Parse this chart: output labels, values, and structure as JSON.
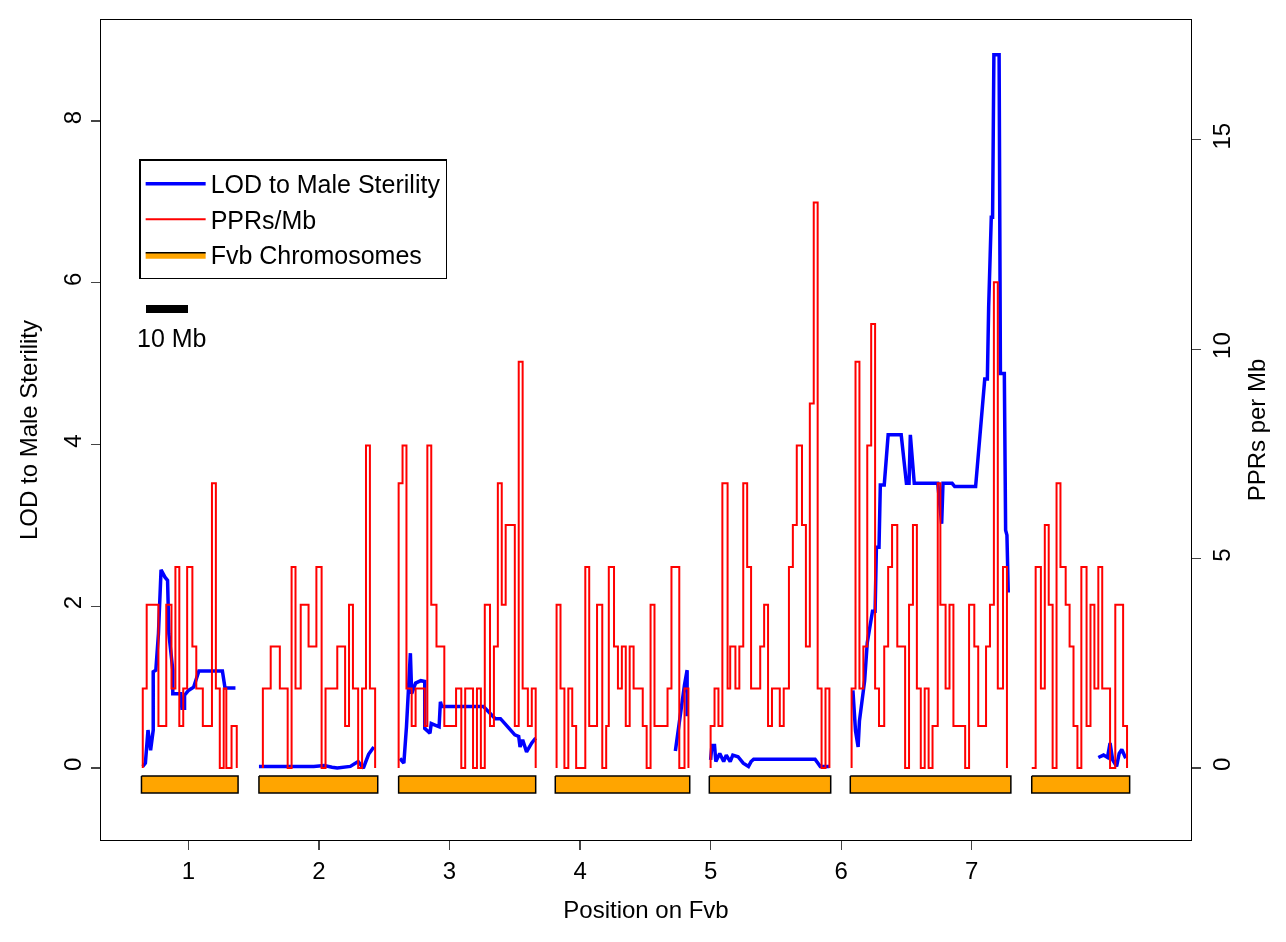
{
  "chart_data": {
    "type": "line",
    "xlabel": "Position on Fvb",
    "ylabel": "LOD to Male Sterility",
    "y2label": "PPRs per Mb",
    "xlim": [
      0.33,
      8.68
    ],
    "xticks": [
      1,
      2,
      3,
      4,
      5,
      6,
      7
    ],
    "ylim": [
      -0.89,
      9.25
    ],
    "yticks": [
      0,
      2,
      4,
      6,
      8
    ],
    "y2lim": [
      -1.72,
      17.86
    ],
    "y2ticks": [
      0,
      5,
      10,
      15
    ],
    "grid": false,
    "legend": "top left",
    "marker": "none",
    "line_style": "solid",
    "annotations": [
      "10 Mb"
    ],
    "series": [
      {
        "name": "LOD to Male Sterility",
        "type": "line",
        "color": "#0000ff",
        "x": [
          0.65,
          0.67,
          0.69,
          0.71,
          0.73,
          0.73,
          0.75,
          0.77,
          0.79,
          0.82,
          0.84,
          0.85,
          0.88,
          0.88,
          0.94,
          0.95,
          0.97,
          0.97,
          1.0,
          1.04,
          1.08,
          1.26,
          1.28,
          1.36,
          null,
          1.54,
          1.96,
          2.04,
          2.1,
          2.14,
          2.24,
          2.3,
          2.34,
          2.38,
          2.42,
          null,
          2.62,
          2.65,
          2.67,
          2.7,
          2.71,
          2.74,
          2.78,
          2.81,
          2.81,
          2.85,
          2.86,
          2.92,
          2.93,
          2.94,
          3.26,
          3.35,
          3.39,
          3.5,
          3.53,
          3.54,
          3.56,
          3.59,
          3.63,
          3.66,
          null,
          4.73,
          4.8,
          4.82,
          4.82,
          null,
          5.0,
          5.01,
          5.03,
          5.04,
          5.07,
          5.1,
          5.12,
          5.15,
          5.17,
          5.21,
          5.25,
          5.29,
          5.31,
          5.33,
          5.8,
          5.84,
          5.91,
          null,
          6.09,
          6.11,
          6.13,
          6.14,
          6.18,
          6.2,
          6.24,
          6.26,
          6.27,
          6.29,
          6.3,
          6.33,
          6.36,
          6.46,
          6.5,
          6.52,
          6.53,
          6.56,
          6.74,
          6.77,
          6.78,
          6.85,
          6.87,
          7.03,
          7.1,
          7.12,
          7.13,
          7.15,
          7.16,
          7.17,
          7.21,
          7.22,
          7.25,
          7.26,
          7.27,
          7.28,
          null,
          7.97,
          8.01,
          8.04,
          8.06,
          8.08,
          8.11,
          8.13,
          8.15,
          8.18
        ],
        "values": [
          0.02,
          0.06,
          0.47,
          0.22,
          0.47,
          1.19,
          1.21,
          1.66,
          2.45,
          2.36,
          2.32,
          1.66,
          1.21,
          0.92,
          0.92,
          0.74,
          0.74,
          0.9,
          0.96,
          1.0,
          1.2,
          1.2,
          0.99,
          0.99,
          null,
          0.02,
          0.02,
          0.03,
          0.01,
          0,
          0.02,
          0.08,
          0,
          0.17,
          0.26,
          null,
          0.12,
          0.06,
          0.51,
          1.42,
          0.92,
          1.05,
          1.08,
          1.07,
          0.49,
          0.43,
          0.55,
          0.51,
          0.82,
          0.76,
          0.76,
          0.61,
          0.61,
          0.41,
          0.39,
          0.26,
          0.35,
          0.2,
          0.31,
          0.37,
          null,
          0.21,
          1.03,
          1.21,
          0.64,
          null,
          0.1,
          0.28,
          0.28,
          0.08,
          0.18,
          0.08,
          0.16,
          0.08,
          0.16,
          0.14,
          0.06,
          0.02,
          0.08,
          0.11,
          0.11,
          0.02,
          0.02,
          null,
          0.96,
          0.46,
          0.26,
          0.58,
          1.08,
          1.55,
          1.94,
          1.94,
          2.73,
          2.73,
          3.5,
          3.5,
          4.12,
          4.12,
          3.52,
          3.52,
          4.12,
          3.52,
          3.52,
          3.02,
          3.52,
          3.52,
          3.48,
          3.48,
          4.81,
          4.81,
          5.7,
          6.81,
          6.81,
          8.82,
          8.82,
          4.88,
          4.88,
          2.94,
          2.88,
          2.17,
          null,
          0.13,
          0.16,
          0.13,
          0.31,
          0.1,
          0.02,
          0.18,
          0.23,
          0.12
        ]
      },
      {
        "name": "PPRs/Mb",
        "type": "step",
        "axis": "y2",
        "color": "#ff0000",
        "x": [
          0.65,
          0.65,
          0.68,
          0.77,
          0.83,
          0.87,
          0.9,
          0.93,
          0.96,
          0.99,
          1.03,
          1.06,
          1.11,
          1.18,
          1.21,
          1.24,
          1.27,
          1.29,
          1.33,
          1.37,
          null,
          1.57,
          1.57,
          1.63,
          1.7,
          1.76,
          1.79,
          1.82,
          1.86,
          1.92,
          1.98,
          2.02,
          2.05,
          2.14,
          2.2,
          2.23,
          2.26,
          2.3,
          2.33,
          2.36,
          2.39,
          2.43,
          null,
          2.61,
          2.61,
          2.64,
          2.67,
          2.71,
          2.74,
          2.81,
          2.83,
          2.86,
          2.9,
          2.96,
          3.05,
          3.09,
          3.12,
          3.18,
          3.21,
          3.24,
          3.27,
          3.31,
          3.34,
          3.37,
          3.4,
          3.43,
          3.5,
          3.53,
          3.56,
          3.6,
          3.63,
          3.66,
          null,
          3.82,
          3.82,
          3.85,
          3.88,
          3.91,
          3.94,
          3.97,
          4.04,
          4.07,
          4.13,
          4.17,
          4.2,
          4.22,
          4.26,
          4.29,
          4.32,
          4.35,
          4.38,
          4.41,
          4.48,
          4.51,
          4.54,
          4.57,
          4.67,
          4.7,
          4.76,
          4.8,
          4.83,
          null,
          5.0,
          5.0,
          5.03,
          5.06,
          5.09,
          5.13,
          5.15,
          5.19,
          5.22,
          5.25,
          5.28,
          5.31,
          5.38,
          5.41,
          5.44,
          5.47,
          5.53,
          5.56,
          5.6,
          5.63,
          5.66,
          5.7,
          5.73,
          5.76,
          5.79,
          5.82,
          5.85,
          5.88,
          5.91,
          null,
          6.08,
          6.08,
          6.11,
          6.14,
          6.17,
          6.2,
          6.23,
          6.26,
          6.29,
          6.33,
          6.36,
          6.39,
          6.43,
          6.49,
          6.52,
          6.55,
          6.58,
          6.61,
          6.64,
          6.67,
          6.7,
          6.74,
          6.76,
          6.8,
          6.83,
          6.86,
          6.95,
          6.98,
          7.02,
          7.05,
          7.11,
          7.14,
          7.17,
          7.2,
          7.24,
          7.27,
          null,
          7.46,
          7.49,
          7.53,
          7.56,
          7.59,
          7.62,
          7.65,
          7.68,
          7.72,
          7.75,
          7.78,
          7.81,
          7.84,
          7.88,
          7.91,
          7.94,
          7.97,
          8.0,
          8.06,
          8.1,
          8.16,
          8.19
        ],
        "values": [
          0,
          1.9,
          3.9,
          1.0,
          3.9,
          1.9,
          4.8,
          1.0,
          1.9,
          4.8,
          2.9,
          1.9,
          1.0,
          6.8,
          1.9,
          0,
          1.9,
          0,
          1.0,
          0,
          null,
          0,
          1.9,
          2.9,
          1.9,
          0,
          4.8,
          1.9,
          3.9,
          2.9,
          4.8,
          0,
          1.9,
          2.9,
          1.0,
          3.9,
          1.9,
          0,
          1.9,
          7.7,
          1.9,
          0,
          null,
          0,
          6.8,
          7.7,
          1.9,
          1.0,
          1.9,
          1.0,
          7.7,
          3.9,
          2.9,
          1.0,
          1.9,
          0,
          1.9,
          0,
          1.9,
          0,
          3.9,
          1.0,
          2.9,
          6.8,
          3.9,
          5.8,
          1.0,
          9.7,
          1.9,
          1.0,
          1.9,
          0,
          null,
          0,
          3.9,
          1.9,
          0,
          1.9,
          1.0,
          0,
          4.8,
          1.0,
          3.9,
          0,
          1.0,
          4.8,
          2.9,
          1.9,
          2.9,
          1.0,
          2.9,
          1.9,
          1.0,
          0,
          3.9,
          1.0,
          1.9,
          4.8,
          0,
          1.9,
          0,
          null,
          0,
          1.0,
          1.9,
          1.0,
          6.8,
          1.9,
          2.9,
          1.9,
          2.9,
          6.8,
          4.8,
          1.9,
          2.9,
          3.9,
          1.0,
          1.9,
          1.0,
          1.9,
          4.8,
          5.8,
          7.7,
          5.8,
          2.9,
          8.7,
          13.5,
          1.9,
          0,
          1.9,
          0,
          null,
          0,
          1.9,
          9.7,
          1.9,
          2.9,
          7.7,
          10.6,
          1.9,
          1.0,
          2.9,
          4.8,
          5.8,
          2.9,
          0,
          3.9,
          5.8,
          1.9,
          0,
          1.9,
          0,
          1.0,
          6.8,
          3.9,
          1.9,
          3.9,
          1.0,
          0,
          3.9,
          2.9,
          1.0,
          2.9,
          3.9,
          11.6,
          1.9,
          4.8,
          0,
          null,
          0,
          4.8,
          1.9,
          5.8,
          3.9,
          0,
          6.8,
          4.8,
          3.9,
          2.9,
          1.0,
          0,
          4.8,
          1.0,
          3.9,
          1.9,
          4.8,
          1.9,
          0,
          3.9,
          1.0,
          0
        ]
      },
      {
        "name": "Fvb Chromosomes",
        "type": "area",
        "color": "#ffa500",
        "x": [
          0.64,
          1.38,
          1.38,
          0.64,
          0.64,
          null,
          1.54,
          2.45,
          2.45,
          1.54,
          1.54,
          null,
          2.61,
          3.66,
          3.66,
          2.61,
          2.61,
          null,
          3.81,
          4.84,
          4.84,
          3.81,
          3.81,
          null,
          4.99,
          5.92,
          5.92,
          4.99,
          4.99,
          null,
          6.07,
          7.3,
          7.3,
          6.07,
          6.07,
          null,
          7.46,
          8.21,
          8.21,
          7.46,
          7.46
        ],
        "values": [
          -0.1,
          -0.1,
          -0.31,
          -0.31,
          -0.1,
          null,
          -0.1,
          -0.1,
          -0.31,
          -0.31,
          -0.1,
          null,
          -0.1,
          -0.1,
          -0.31,
          -0.31,
          -0.1,
          null,
          -0.1,
          -0.1,
          -0.31,
          -0.31,
          -0.1,
          null,
          -0.1,
          -0.1,
          -0.31,
          -0.31,
          -0.1,
          null,
          -0.1,
          -0.1,
          -0.31,
          -0.31,
          -0.1,
          null,
          -0.1,
          -0.1,
          -0.31,
          -0.31,
          -0.1
        ]
      }
    ]
  }
}
